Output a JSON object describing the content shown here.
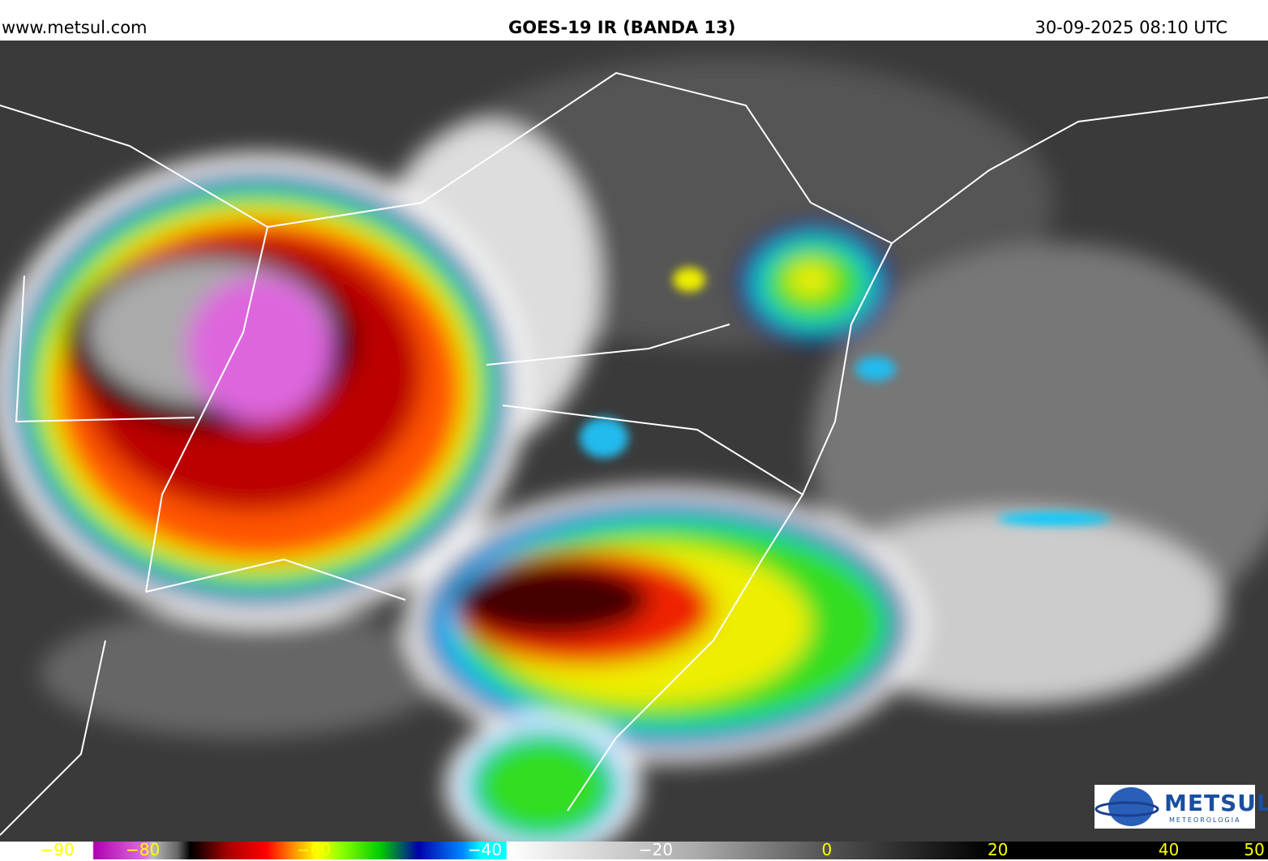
{
  "header": {
    "source": "www.metsul.com",
    "title": "GOES-19 IR (BANDA 13)",
    "timestamp": "30-09-2025 08:10 UTC"
  },
  "logo": {
    "name": "METSUL",
    "tagline": "METEOROLOGIA"
  },
  "colorbar": {
    "range": [
      -96.7,
      51.6
    ],
    "ticks": [
      {
        "value": -90,
        "label": "−90"
      },
      {
        "value": -80,
        "label": "−80"
      },
      {
        "value": -60,
        "label": "−60"
      },
      {
        "value": -40,
        "label": "−40"
      },
      {
        "value": -20,
        "label": "−20"
      },
      0,
      20,
      40,
      50
    ]
  }
}
